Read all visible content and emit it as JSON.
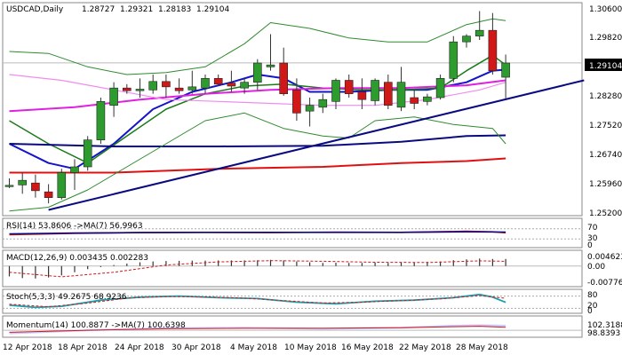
{
  "chart_data": [
    {
      "type": "candlestick",
      "title": "USDCAD,Daily",
      "ohlc_readout": [
        "1.28727",
        "1.29321",
        "1.28183",
        "1.29104"
      ],
      "current_price_label": "1.29104",
      "ylim": [
        1.252,
        1.306
      ],
      "y_ticks": [
        "1.30600",
        "1.29820",
        "1.29104",
        "1.28280",
        "1.27520",
        "1.26740",
        "1.25960",
        "1.25200"
      ],
      "x_ticks": [
        "12 Apr 2018",
        "18 Apr 2018",
        "24 Apr 2018",
        "30 Apr 2018",
        "4 May 2018",
        "10 May 2018",
        "16 May 2018",
        "22 May 2018",
        "28 May 2018"
      ],
      "colors": {
        "up": "#2e9b2e",
        "down": "#d01818",
        "price_tag": "#000000"
      },
      "candles": [
        {
          "o": 1.259,
          "h": 1.261,
          "l": 1.2585,
          "c": 1.2592
        },
        {
          "o": 1.2593,
          "h": 1.2625,
          "l": 1.257,
          "c": 1.2605
        },
        {
          "o": 1.2598,
          "h": 1.262,
          "l": 1.256,
          "c": 1.2578
        },
        {
          "o": 1.2575,
          "h": 1.2595,
          "l": 1.2545,
          "c": 1.256
        },
        {
          "o": 1.256,
          "h": 1.2635,
          "l": 1.2555,
          "c": 1.2625
        },
        {
          "o": 1.2625,
          "h": 1.266,
          "l": 1.258,
          "c": 1.264
        },
        {
          "o": 1.264,
          "h": 1.272,
          "l": 1.263,
          "c": 1.271
        },
        {
          "o": 1.271,
          "h": 1.282,
          "l": 1.27,
          "c": 1.281
        },
        {
          "o": 1.28,
          "h": 1.286,
          "l": 1.277,
          "c": 1.2845
        },
        {
          "o": 1.2845,
          "h": 1.2855,
          "l": 1.283,
          "c": 1.2838
        },
        {
          "o": 1.2838,
          "h": 1.287,
          "l": 1.282,
          "c": 1.2842
        },
        {
          "o": 1.284,
          "h": 1.288,
          "l": 1.283,
          "c": 1.2862
        },
        {
          "o": 1.2862,
          "h": 1.288,
          "l": 1.282,
          "c": 1.2848
        },
        {
          "o": 1.2845,
          "h": 1.287,
          "l": 1.283,
          "c": 1.2838
        },
        {
          "o": 1.284,
          "h": 1.289,
          "l": 1.283,
          "c": 1.2848
        },
        {
          "o": 1.2845,
          "h": 1.288,
          "l": 1.283,
          "c": 1.287
        },
        {
          "o": 1.287,
          "h": 1.288,
          "l": 1.285,
          "c": 1.2855
        },
        {
          "o": 1.2858,
          "h": 1.289,
          "l": 1.2835,
          "c": 1.285
        },
        {
          "o": 1.2845,
          "h": 1.287,
          "l": 1.283,
          "c": 1.286
        },
        {
          "o": 1.286,
          "h": 1.292,
          "l": 1.284,
          "c": 1.291
        },
        {
          "o": 1.29,
          "h": 1.2985,
          "l": 1.289,
          "c": 1.2905
        },
        {
          "o": 1.291,
          "h": 1.295,
          "l": 1.2825,
          "c": 1.283
        },
        {
          "o": 1.284,
          "h": 1.287,
          "l": 1.276,
          "c": 1.278
        },
        {
          "o": 1.2785,
          "h": 1.282,
          "l": 1.2745,
          "c": 1.28
        },
        {
          "o": 1.2795,
          "h": 1.283,
          "l": 1.278,
          "c": 1.2815
        },
        {
          "o": 1.281,
          "h": 1.287,
          "l": 1.279,
          "c": 1.2865
        },
        {
          "o": 1.2865,
          "h": 1.288,
          "l": 1.282,
          "c": 1.283
        },
        {
          "o": 1.2835,
          "h": 1.287,
          "l": 1.279,
          "c": 1.2815
        },
        {
          "o": 1.2812,
          "h": 1.287,
          "l": 1.28,
          "c": 1.2865
        },
        {
          "o": 1.286,
          "h": 1.288,
          "l": 1.279,
          "c": 1.28
        },
        {
          "o": 1.2795,
          "h": 1.29,
          "l": 1.2785,
          "c": 1.286
        },
        {
          "o": 1.282,
          "h": 1.284,
          "l": 1.279,
          "c": 1.2805
        },
        {
          "o": 1.281,
          "h": 1.283,
          "l": 1.28,
          "c": 1.2822
        },
        {
          "o": 1.282,
          "h": 1.288,
          "l": 1.2815,
          "c": 1.287
        },
        {
          "o": 1.287,
          "h": 1.298,
          "l": 1.286,
          "c": 1.2965
        },
        {
          "o": 1.2965,
          "h": 1.2985,
          "l": 1.295,
          "c": 1.298
        },
        {
          "o": 1.298,
          "h": 1.3045,
          "l": 1.297,
          "c": 1.2995
        },
        {
          "o": 1.2995,
          "h": 1.304,
          "l": 1.288,
          "c": 1.289
        },
        {
          "o": 1.2873,
          "h": 1.2932,
          "l": 1.2818,
          "c": 1.291
        }
      ],
      "overlays": [
        {
          "name": "Blue MA",
          "color": "#1414c8",
          "width": 2,
          "points": [
            [
              0,
              1.27
            ],
            [
              3,
              1.265
            ],
            [
              5,
              1.2635
            ],
            [
              8,
              1.27
            ],
            [
              11,
              1.279
            ],
            [
              14,
              1.2835
            ],
            [
              17,
              1.286
            ],
            [
              19,
              1.288
            ],
            [
              21,
              1.287
            ],
            [
              23,
              1.2835
            ],
            [
              26,
              1.2835
            ],
            [
              29,
              1.284
            ],
            [
              32,
              1.284
            ],
            [
              35,
              1.286
            ],
            [
              37,
              1.289
            ],
            [
              38,
              1.2893
            ]
          ]
        },
        {
          "name": "Green MA",
          "color": "#1a7a1a",
          "width": 1.5,
          "points": [
            [
              0,
              1.276
            ],
            [
              3,
              1.27
            ],
            [
              6,
              1.265
            ],
            [
              9,
              1.272
            ],
            [
              12,
              1.279
            ],
            [
              15,
              1.283
            ],
            [
              18,
              1.285
            ],
            [
              21,
              1.2855
            ],
            [
              24,
              1.2845
            ],
            [
              27,
              1.284
            ],
            [
              30,
              1.284
            ],
            [
              33,
              1.2845
            ],
            [
              35,
              1.289
            ],
            [
              37,
              1.293
            ],
            [
              38,
              1.2905
            ]
          ]
        },
        {
          "name": "Magenta MA",
          "color": "#e020e0",
          "width": 2,
          "points": [
            [
              0,
              1.2785
            ],
            [
              5,
              1.2795
            ],
            [
              10,
              1.2815
            ],
            [
              15,
              1.283
            ],
            [
              20,
              1.284
            ],
            [
              25,
              1.2845
            ],
            [
              30,
              1.2845
            ],
            [
              35,
              1.2852
            ],
            [
              38,
              1.2865
            ]
          ]
        },
        {
          "name": "Pink MA",
          "color": "#f08cf0",
          "width": 1.2,
          "points": [
            [
              0,
              1.288
            ],
            [
              4,
              1.2865
            ],
            [
              8,
              1.284
            ],
            [
              12,
              1.2815
            ],
            [
              16,
              1.281
            ],
            [
              20,
              1.2805
            ],
            [
              24,
              1.28
            ],
            [
              28,
              1.28
            ],
            [
              32,
              1.2815
            ],
            [
              36,
              1.284
            ],
            [
              38,
              1.286
            ]
          ]
        },
        {
          "name": "Navy MA",
          "color": "#0a0a80",
          "width": 2,
          "points": [
            [
              0,
              1.27
            ],
            [
              8,
              1.2693
            ],
            [
              16,
              1.2693
            ],
            [
              24,
              1.2695
            ],
            [
              30,
              1.2705
            ],
            [
              35,
              1.272
            ],
            [
              38,
              1.2722
            ]
          ]
        },
        {
          "name": "Red MA",
          "color": "#e01010",
          "width": 2,
          "points": [
            [
              0,
              1.2625
            ],
            [
              8,
              1.2625
            ],
            [
              16,
              1.2635
            ],
            [
              24,
              1.264
            ],
            [
              30,
              1.265
            ],
            [
              35,
              1.2655
            ],
            [
              38,
              1.2662
            ]
          ]
        },
        {
          "name": "Upper band",
          "color": "#2e8b2e",
          "width": 1,
          "points": [
            [
              0,
              1.294
            ],
            [
              3,
              1.2935
            ],
            [
              6,
              1.29
            ],
            [
              9,
              1.288
            ],
            [
              12,
              1.2885
            ],
            [
              15,
              1.29
            ],
            [
              18,
              1.296
            ],
            [
              20,
              1.3015
            ],
            [
              23,
              1.3
            ],
            [
              26,
              1.2975
            ],
            [
              29,
              1.2965
            ],
            [
              32,
              1.2965
            ],
            [
              35,
              1.301
            ],
            [
              37,
              1.3025
            ],
            [
              38,
              1.302
            ]
          ]
        },
        {
          "name": "Lower band",
          "color": "#2e8b2e",
          "width": 1,
          "points": [
            [
              0,
              1.2525
            ],
            [
              3,
              1.2535
            ],
            [
              6,
              1.258
            ],
            [
              9,
              1.264
            ],
            [
              12,
              1.27
            ],
            [
              15,
              1.276
            ],
            [
              18,
              1.278
            ],
            [
              21,
              1.274
            ],
            [
              24,
              1.272
            ],
            [
              26,
              1.2715
            ],
            [
              28,
              1.276
            ],
            [
              31,
              1.277
            ],
            [
              34,
              1.275
            ],
            [
              37,
              1.274
            ],
            [
              38,
              1.27
            ]
          ]
        },
        {
          "name": "Trendline",
          "color": "#0a0a80",
          "width": 2,
          "points": [
            [
              3,
              1.2528
            ],
            [
              44,
              1.2865
            ]
          ]
        }
      ]
    },
    {
      "type": "line",
      "label": "RSI(14) 53.8606  ->MA(7) 56.9963",
      "ylim": [
        0,
        100
      ],
      "y_ticks": [
        "70",
        "30",
        "0"
      ],
      "series": [
        {
          "color": "#d01818",
          "points": [
            [
              0,
              47
            ],
            [
              5,
              52
            ],
            [
              10,
              55
            ],
            [
              15,
              56
            ],
            [
              20,
              55
            ],
            [
              25,
              57
            ],
            [
              30,
              56
            ],
            [
              35,
              60
            ],
            [
              37,
              58
            ],
            [
              38,
              54
            ]
          ]
        },
        {
          "color": "#0a0a80",
          "points": [
            [
              0,
              50
            ],
            [
              5,
              53
            ],
            [
              10,
              55
            ],
            [
              15,
              56
            ],
            [
              20,
              56
            ],
            [
              25,
              56
            ],
            [
              30,
              56
            ],
            [
              35,
              58
            ],
            [
              38,
              57
            ]
          ]
        }
      ]
    },
    {
      "type": "bar",
      "label": "MACD(12,26,9) 0.003435 0.002283",
      "ylim": [
        -0.0095,
        0.0063
      ],
      "y_ticks": [
        "0.004623",
        "0.00",
        "-0.00776"
      ],
      "values": [
        -0.005,
        -0.0058,
        -0.006,
        -0.0055,
        -0.0045,
        -0.003,
        -0.0015,
        -0.0005,
        0.0005,
        0.0012,
        0.0018,
        0.0022,
        0.0024,
        0.0025,
        0.0026,
        0.0026,
        0.0027,
        0.0027,
        0.0027,
        0.0028,
        0.003,
        0.0027,
        0.0022,
        0.0018,
        0.0015,
        0.0016,
        0.0015,
        0.0015,
        0.0016,
        0.0015,
        0.0017,
        0.0018,
        0.002,
        0.0022,
        0.0028,
        0.0032,
        0.0036,
        0.0034,
        0.0034
      ],
      "signal": [
        [
          0,
          -0.003
        ],
        [
          4,
          -0.0052
        ],
        [
          8,
          -0.003
        ],
        [
          12,
          0.0005
        ],
        [
          16,
          0.002
        ],
        [
          20,
          0.0026
        ],
        [
          24,
          0.0023
        ],
        [
          28,
          0.0018
        ],
        [
          32,
          0.0017
        ],
        [
          36,
          0.0025
        ],
        [
          38,
          0.0023
        ]
      ]
    },
    {
      "type": "line",
      "label": "Stoch(5,3,3) 49.2675  68.9236",
      "ylim": [
        0,
        100
      ],
      "y_ticks": [
        "80",
        "20",
        "0"
      ],
      "series": [
        {
          "color": "#1aa0b0",
          "points": [
            [
              0,
              35
            ],
            [
              2,
              25
            ],
            [
              4,
              30
            ],
            [
              7,
              60
            ],
            [
              10,
              75
            ],
            [
              13,
              80
            ],
            [
              16,
              72
            ],
            [
              19,
              68
            ],
            [
              22,
              50
            ],
            [
              25,
              42
            ],
            [
              28,
              55
            ],
            [
              31,
              60
            ],
            [
              34,
              72
            ],
            [
              36,
              88
            ],
            [
              37,
              75
            ],
            [
              38,
              49
            ]
          ]
        },
        {
          "color": "#d01818",
          "points": [
            [
              0,
              40
            ],
            [
              3,
              28
            ],
            [
              6,
              45
            ],
            [
              9,
              70
            ],
            [
              12,
              78
            ],
            [
              15,
              76
            ],
            [
              18,
              70
            ],
            [
              21,
              58
            ],
            [
              24,
              46
            ],
            [
              27,
              50
            ],
            [
              30,
              58
            ],
            [
              33,
              66
            ],
            [
              36,
              82
            ],
            [
              38,
              69
            ]
          ]
        }
      ]
    },
    {
      "type": "line",
      "label": "Momentum(14) 100.8877  ->MA(7) 100.6398",
      "y_ticks": [
        "102.3188",
        "98.8393"
      ],
      "series": [
        {
          "color": "#c8c8ff",
          "points": [
            [
              0,
              99.4
            ],
            [
              6,
              100.0
            ],
            [
              12,
              100.4
            ],
            [
              18,
              100.5
            ],
            [
              24,
              100.3
            ],
            [
              30,
              100.5
            ],
            [
              34,
              100.9
            ],
            [
              36,
              101.0
            ],
            [
              38,
              100.9
            ]
          ]
        },
        {
          "color": "#d01818",
          "points": [
            [
              0,
              99.6
            ],
            [
              6,
              100.0
            ],
            [
              12,
              100.3
            ],
            [
              18,
              100.4
            ],
            [
              24,
              100.4
            ],
            [
              30,
              100.5
            ],
            [
              34,
              100.7
            ],
            [
              36,
              100.8
            ],
            [
              38,
              100.6
            ]
          ]
        }
      ]
    }
  ]
}
